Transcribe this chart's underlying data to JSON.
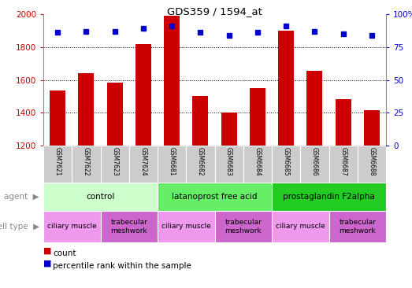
{
  "title": "GDS359 / 1594_at",
  "samples": [
    "GSM7621",
    "GSM7622",
    "GSM7623",
    "GSM7624",
    "GSM6681",
    "GSM6682",
    "GSM6683",
    "GSM6684",
    "GSM6685",
    "GSM6686",
    "GSM6687",
    "GSM6688"
  ],
  "counts": [
    1535,
    1640,
    1585,
    1820,
    1990,
    1500,
    1400,
    1550,
    1900,
    1655,
    1485,
    1415
  ],
  "percentiles": [
    86,
    87,
    87,
    89,
    91,
    86,
    84,
    86,
    91,
    87,
    85,
    84
  ],
  "ylim_left": [
    1200,
    2000
  ],
  "ylim_right": [
    0,
    100
  ],
  "yticks_left": [
    1200,
    1400,
    1600,
    1800,
    2000
  ],
  "yticks_right": [
    0,
    25,
    50,
    75,
    100
  ],
  "bar_color": "#cc0000",
  "dot_color": "#0000cc",
  "bar_bottom": 1200,
  "agent_groups": [
    {
      "label": "control",
      "start": 0,
      "end": 4,
      "color": "#ccffcc"
    },
    {
      "label": "latanoprost free acid",
      "start": 4,
      "end": 8,
      "color": "#66ee66"
    },
    {
      "label": "prostaglandin F2alpha",
      "start": 8,
      "end": 12,
      "color": "#22cc22"
    }
  ],
  "cell_type_groups": [
    {
      "label": "ciliary muscle",
      "start": 0,
      "end": 2,
      "color": "#ee99ee"
    },
    {
      "label": "trabecular\nmeshwork",
      "start": 2,
      "end": 4,
      "color": "#cc66cc"
    },
    {
      "label": "ciliary muscle",
      "start": 4,
      "end": 6,
      "color": "#ee99ee"
    },
    {
      "label": "trabecular\nmeshwork",
      "start": 6,
      "end": 8,
      "color": "#cc66cc"
    },
    {
      "label": "ciliary muscle",
      "start": 8,
      "end": 10,
      "color": "#ee99ee"
    },
    {
      "label": "trabecular\nmeshwork",
      "start": 10,
      "end": 12,
      "color": "#cc66cc"
    }
  ],
  "sample_box_color": "#cccccc",
  "border_color": "#888888",
  "left_label_agent": "agent",
  "left_label_cell": "cell type",
  "legend_count": "count",
  "legend_pct": "percentile rank within the sample"
}
